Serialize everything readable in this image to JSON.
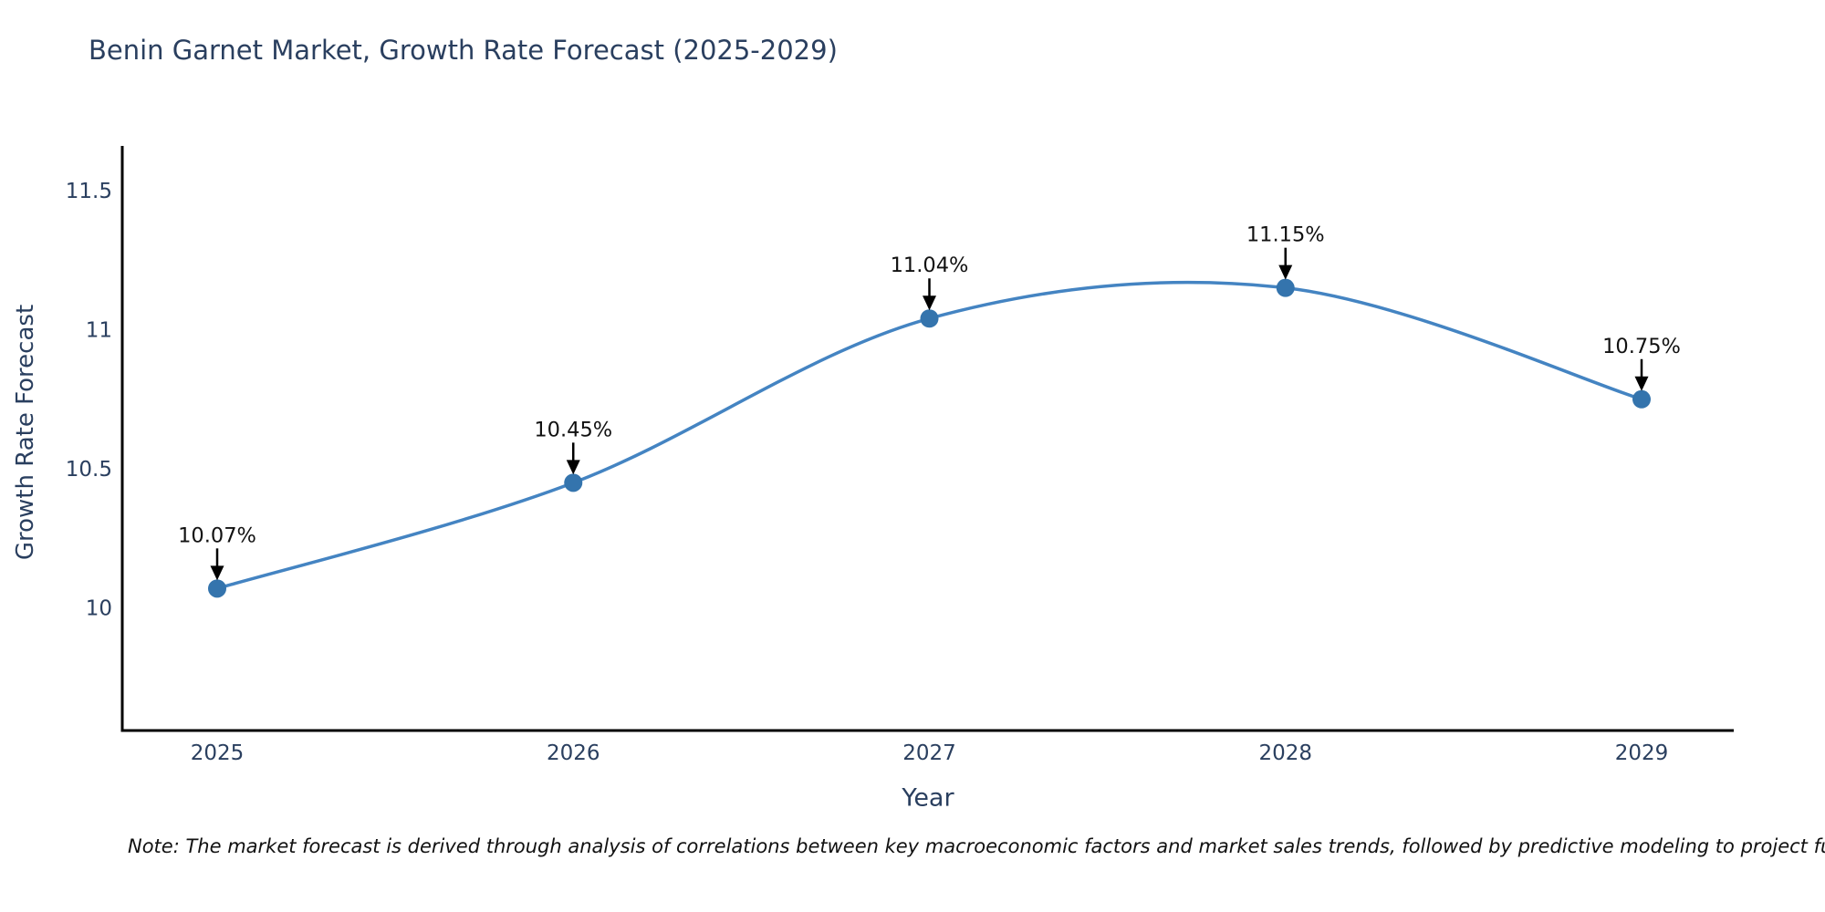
{
  "title": "Benin Garnet Market, Growth Rate Forecast (2025-2029)",
  "note": "Note: The market forecast is derived through analysis of correlations between key macroeconomic factors and market sales trends, followed by predictive modeling to project future sales.",
  "chart_data": {
    "type": "line",
    "title": "Benin Garnet Market, Growth Rate Forecast (2025-2029)",
    "xlabel": "Year",
    "ylabel": "Growth Rate Forecast",
    "x": [
      2025,
      2026,
      2027,
      2028,
      2029
    ],
    "x_ticks": [
      "2025",
      "2026",
      "2027",
      "2028",
      "2029"
    ],
    "y_ticks": [
      10,
      10.5,
      11,
      11.5
    ],
    "ylim": [
      9.56,
      11.66
    ],
    "grid": false,
    "legend": "none",
    "curve": "spline",
    "series": [
      {
        "name": "Growth Rate Forecast",
        "values": [
          10.07,
          10.45,
          11.04,
          11.15,
          10.75
        ],
        "point_labels": [
          "10.07%",
          "10.45%",
          "11.04%",
          "11.15%",
          "10.75%"
        ]
      }
    ],
    "colors": {
      "line": "#4484c2",
      "marker": "#3474ad",
      "axis": "#000000",
      "tick_text": "#2a3f5f",
      "annotation_text": "#111111",
      "title_text": "#2a3f5f"
    }
  }
}
